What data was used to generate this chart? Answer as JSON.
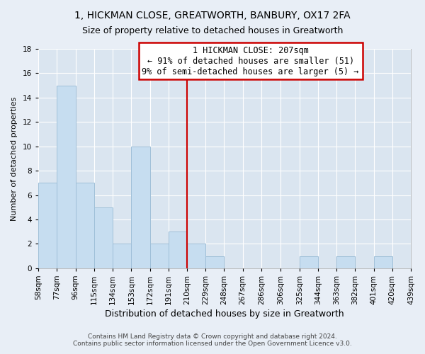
{
  "title_line1": "1, HICKMAN CLOSE, GREATWORTH, BANBURY, OX17 2FA",
  "title_line2": "Size of property relative to detached houses in Greatworth",
  "xlabel": "Distribution of detached houses by size in Greatworth",
  "ylabel": "Number of detached properties",
  "bar_edges": [
    58,
    77,
    96,
    115,
    134,
    153,
    172,
    191,
    210,
    229,
    248,
    267,
    286,
    306,
    325,
    344,
    363,
    382,
    401,
    420,
    439
  ],
  "bar_heights": [
    7,
    15,
    7,
    5,
    2,
    10,
    2,
    3,
    2,
    1,
    0,
    0,
    0,
    0,
    1,
    0,
    1,
    0,
    1,
    0
  ],
  "bar_color": "#c6ddf0",
  "bar_edgecolor": "#9fbfd8",
  "reference_line_x": 210,
  "reference_line_color": "#cc0000",
  "annotation_title": "1 HICKMAN CLOSE: 207sqm",
  "annotation_line1": "← 91% of detached houses are smaller (51)",
  "annotation_line2": "9% of semi-detached houses are larger (5) →",
  "annotation_box_edgecolor": "#cc0000",
  "annotation_box_facecolor": "#ffffff",
  "ylim": [
    0,
    18
  ],
  "footer_line1": "Contains HM Land Registry data © Crown copyright and database right 2024.",
  "footer_line2": "Contains public sector information licensed under the Open Government Licence v3.0.",
  "tick_labels": [
    "58sqm",
    "77sqm",
    "96sqm",
    "115sqm",
    "134sqm",
    "153sqm",
    "172sqm",
    "191sqm",
    "210sqm",
    "229sqm",
    "248sqm",
    "267sqm",
    "286sqm",
    "306sqm",
    "325sqm",
    "344sqm",
    "363sqm",
    "382sqm",
    "401sqm",
    "420sqm",
    "439sqm"
  ],
  "background_color": "#e8eef6",
  "plot_background_color": "#dae5f0",
  "grid_color": "#ffffff",
  "title_fontsize": 10,
  "subtitle_fontsize": 9,
  "xlabel_fontsize": 9,
  "ylabel_fontsize": 8,
  "tick_fontsize": 7.5,
  "annotation_fontsize": 8.5,
  "footer_fontsize": 6.5
}
